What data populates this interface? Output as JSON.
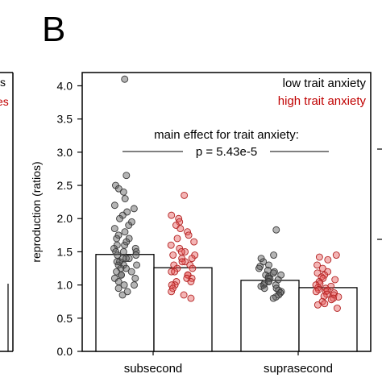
{
  "panel_label": "B",
  "left_fragments": {
    "text_top": "s",
    "text_red": "es"
  },
  "chart_data": {
    "type": "bar",
    "categories": [
      "subsecond",
      "suprasecond"
    ],
    "ylabel": "reproduction (ratios)",
    "xlabel": "",
    "ylim": [
      0,
      4.2
    ],
    "yticks": [
      "0.0",
      "0.5",
      "1.0",
      "1.5",
      "2.0",
      "2.5",
      "3.0",
      "3.5",
      "4.0"
    ],
    "series": [
      {
        "name": "low trait anxiety",
        "color": "#000000",
        "values": [
          1.46,
          1.07
        ],
        "points": [
          [
            4.1,
            2.65,
            2.5,
            2.45,
            2.4,
            2.3,
            2.2,
            2.15,
            2.1,
            2.05,
            2.0,
            1.95,
            1.9,
            1.85,
            1.8,
            1.75,
            1.7,
            1.7,
            1.65,
            1.6,
            1.6,
            1.55,
            1.55,
            1.5,
            1.5,
            1.5,
            1.45,
            1.45,
            1.4,
            1.4,
            1.4,
            1.35,
            1.35,
            1.3,
            1.3,
            1.3,
            1.25,
            1.25,
            1.2,
            1.2,
            1.15,
            1.15,
            1.1,
            1.1,
            1.05,
            1.0,
            1.0,
            0.95,
            0.9,
            0.85
          ],
          [
            1.83,
            1.45,
            1.4,
            1.35,
            1.3,
            1.28,
            1.25,
            1.22,
            1.2,
            1.18,
            1.15,
            1.15,
            1.12,
            1.1,
            1.1,
            1.08,
            1.05,
            1.05,
            1.02,
            1.0,
            1.0,
            0.98,
            0.95,
            0.95,
            0.92,
            0.9,
            0.88,
            0.85,
            0.82,
            0.8
          ]
        ]
      },
      {
        "name": "high trait anxiety",
        "color": "#d62728",
        "values": [
          1.26,
          0.96
        ],
        "points": [
          [
            2.35,
            2.05,
            2.0,
            1.95,
            1.9,
            1.85,
            1.8,
            1.75,
            1.7,
            1.65,
            1.6,
            1.55,
            1.5,
            1.5,
            1.45,
            1.45,
            1.4,
            1.4,
            1.35,
            1.35,
            1.3,
            1.3,
            1.25,
            1.25,
            1.2,
            1.2,
            1.15,
            1.15,
            1.1,
            1.1,
            1.05,
            1.05,
            1.0,
            1.0,
            0.95,
            0.9,
            0.85,
            0.8
          ],
          [
            1.45,
            1.42,
            1.38,
            1.3,
            1.25,
            1.2,
            1.18,
            1.15,
            1.12,
            1.1,
            1.08,
            1.05,
            1.02,
            1.0,
            0.98,
            0.96,
            0.95,
            0.93,
            0.92,
            0.9,
            0.9,
            0.88,
            0.86,
            0.85,
            0.83,
            0.82,
            0.8,
            0.78,
            0.75,
            0.72,
            0.7,
            0.65
          ]
        ]
      }
    ],
    "annotation": {
      "text": "main effect for trait anxiety:",
      "pvalue": "p = 5.43e-5"
    },
    "legend_placement": "top-right",
    "grid": false
  }
}
